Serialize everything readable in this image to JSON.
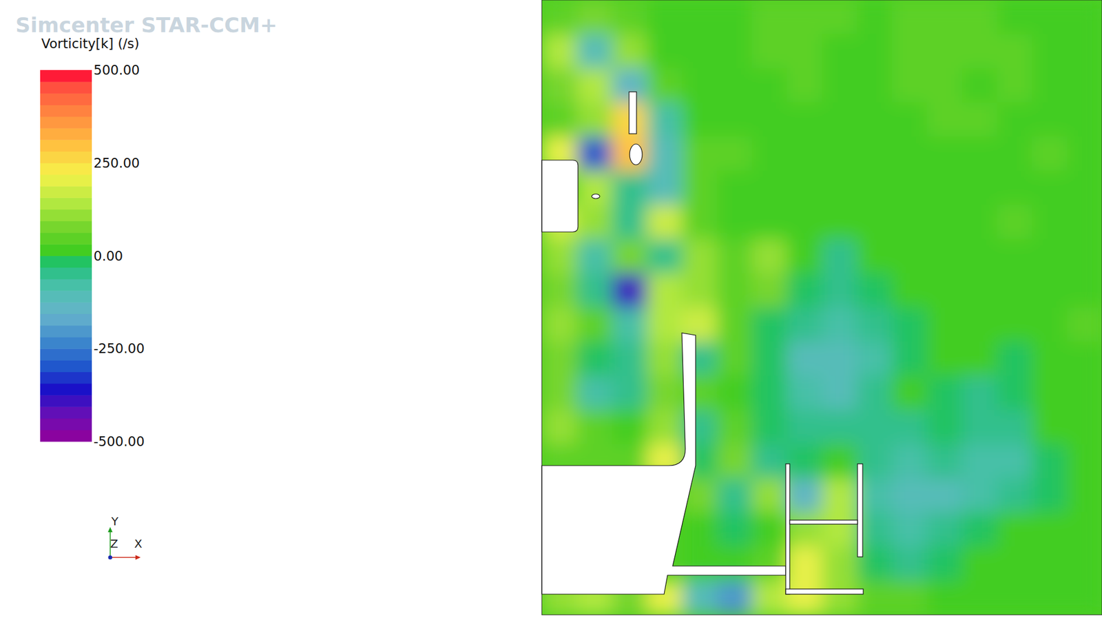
{
  "chart_data": {
    "type": "contour",
    "watermark": "Simcenter STAR-CCM+",
    "title": "Vorticity[k] (/s)",
    "colorbar": {
      "range": [
        -500,
        500
      ],
      "ticks": [
        {
          "value": 500,
          "label": "500.00"
        },
        {
          "value": 250,
          "label": "250.00"
        },
        {
          "value": 0,
          "label": "0.00"
        },
        {
          "value": -250,
          "label": "-250.00"
        },
        {
          "value": -500,
          "label": "-500.00"
        }
      ]
    },
    "axes_triad": [
      "Y",
      "Z",
      "X"
    ],
    "cells": [
      [
        60,
        80,
        40,
        30,
        20,
        30,
        40,
        40,
        40,
        30,
        40,
        40,
        40,
        30,
        30,
        30
      ],
      [
        150,
        -100,
        100,
        30,
        30,
        20,
        40,
        40,
        30,
        30,
        40,
        40,
        40,
        40,
        30,
        30
      ],
      [
        80,
        150,
        -150,
        40,
        20,
        30,
        30,
        40,
        30,
        30,
        40,
        40,
        30,
        40,
        30,
        30
      ],
      [
        60,
        100,
        250,
        -80,
        30,
        20,
        30,
        30,
        30,
        30,
        30,
        40,
        40,
        30,
        30,
        30
      ],
      [
        200,
        -300,
        300,
        -100,
        50,
        40,
        30,
        20,
        30,
        30,
        20,
        30,
        30,
        30,
        40,
        30
      ],
      [
        null,
        150,
        -50,
        -120,
        40,
        30,
        30,
        30,
        30,
        30,
        30,
        30,
        20,
        30,
        30,
        30
      ],
      [
        180,
        100,
        -50,
        180,
        60,
        30,
        20,
        30,
        30,
        30,
        20,
        30,
        30,
        40,
        30,
        30
      ],
      [
        120,
        -80,
        80,
        -60,
        100,
        60,
        120,
        20,
        -40,
        20,
        30,
        30,
        30,
        30,
        30,
        30
      ],
      [
        80,
        -40,
        -400,
        150,
        120,
        60,
        90,
        -30,
        -60,
        -20,
        20,
        30,
        30,
        20,
        30,
        30
      ],
      [
        100,
        60,
        -80,
        150,
        160,
        60,
        -30,
        -60,
        -80,
        -40,
        -10,
        20,
        20,
        30,
        30,
        40
      ],
      [
        80,
        -20,
        -60,
        100,
        -40,
        40,
        -20,
        -100,
        -110,
        -80,
        -20,
        20,
        0,
        -30,
        10,
        30
      ],
      [
        90,
        -70,
        -60,
        80,
        50,
        30,
        -30,
        -80,
        -110,
        -60,
        20,
        -20,
        -40,
        -30,
        0,
        30
      ],
      [
        100,
        40,
        30,
        120,
        -60,
        60,
        -30,
        -40,
        -40,
        -60,
        -50,
        -20,
        -60,
        -60,
        0,
        20
      ],
      [
        50,
        50,
        50,
        200,
        -30,
        80,
        -60,
        -20,
        20,
        -60,
        -80,
        -40,
        -80,
        -80,
        -20,
        20
      ],
      [
        null,
        null,
        null,
        null,
        80,
        -40,
        100,
        -150,
        150,
        -80,
        -120,
        -100,
        -80,
        -40,
        -20,
        20
      ],
      [
        null,
        null,
        null,
        null,
        30,
        -30,
        20,
        100,
        150,
        -60,
        -80,
        -60,
        -20,
        0,
        10,
        30
      ],
      [
        null,
        null,
        null,
        null,
        20,
        10,
        40,
        200,
        100,
        -20,
        -40,
        -20,
        10,
        20,
        30,
        30
      ],
      [
        100,
        150,
        80,
        200,
        -100,
        -200,
        150,
        200,
        100,
        50,
        40,
        30,
        30,
        30,
        30,
        30
      ]
    ]
  }
}
